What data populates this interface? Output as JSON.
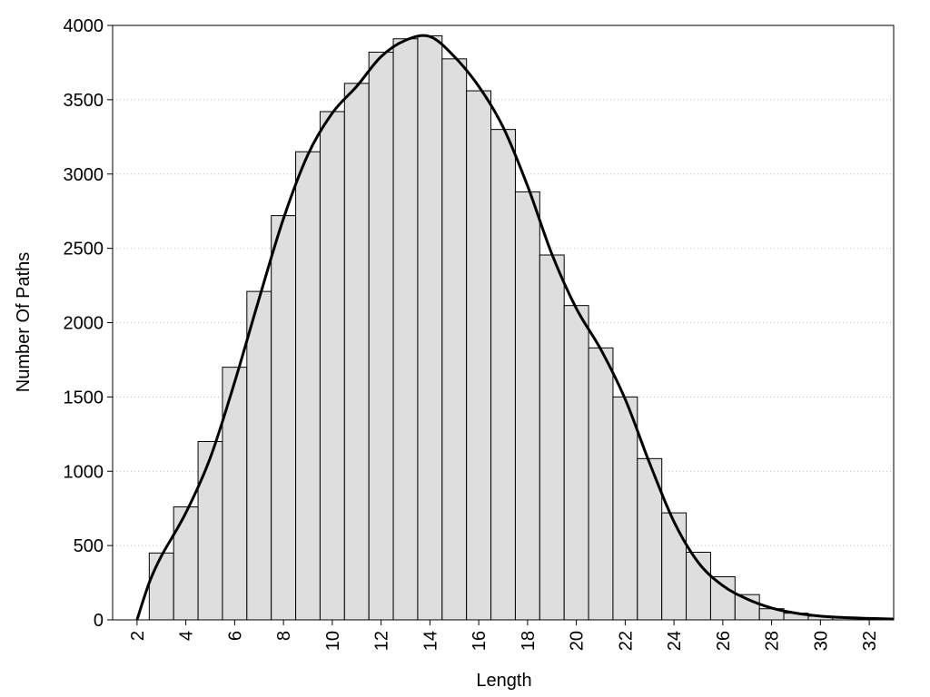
{
  "chart_data": {
    "type": "histogram",
    "xlabel": "Length",
    "ylabel": "Number Of Paths",
    "bins": [
      2.5,
      3.5,
      4.5,
      5.5,
      6.5,
      7.5,
      8.5,
      9.5,
      10.5,
      11.5,
      12.5,
      13.5,
      14.5,
      15.5,
      16.5,
      17.5,
      18.5,
      19.5,
      20.5,
      21.5,
      22.5,
      23.5,
      24.5,
      25.5,
      26.5,
      27.5,
      28.5,
      29.5,
      30.5,
      31.5,
      32.5
    ],
    "values": [
      450,
      760,
      1200,
      1700,
      2210,
      2720,
      3150,
      3420,
      3610,
      3820,
      3910,
      3930,
      3775,
      3560,
      3300,
      2880,
      2455,
      2115,
      1830,
      1500,
      1085,
      720,
      455,
      290,
      170,
      75,
      45,
      25,
      15,
      8
    ],
    "color": "#dedede",
    "line": {
      "x": [
        2,
        2.5,
        3,
        4,
        5,
        6,
        7,
        8,
        9,
        10,
        11,
        12,
        13,
        14,
        15,
        16,
        17,
        18,
        19,
        20,
        21,
        22,
        23,
        24,
        25,
        26,
        27,
        28,
        29,
        30,
        31,
        32,
        33
      ],
      "values": [
        0,
        250,
        430,
        720,
        1090,
        1600,
        2160,
        2700,
        3130,
        3410,
        3590,
        3790,
        3900,
        3925,
        3790,
        3590,
        3315,
        2920,
        2460,
        2095,
        1820,
        1485,
        1055,
        660,
        385,
        230,
        140,
        80,
        45,
        25,
        15,
        10,
        5
      ],
      "color": "#000000"
    },
    "xlim": [
      1,
      33
    ],
    "ylim": [
      0,
      4000
    ],
    "xticks": [
      2,
      4,
      6,
      8,
      10,
      12,
      14,
      16,
      18,
      20,
      22,
      24,
      26,
      28,
      30,
      32
    ],
    "yticks": [
      0,
      500,
      1000,
      1500,
      2000,
      2500,
      3000,
      3500,
      4000
    ],
    "grid": true
  }
}
